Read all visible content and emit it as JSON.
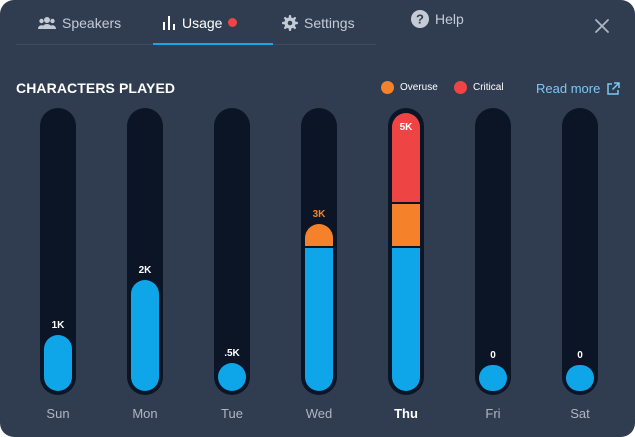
{
  "tabs": [
    {
      "label": "Speakers",
      "icon": "users-icon",
      "active": false
    },
    {
      "label": "Usage",
      "icon": "bar-chart-icon",
      "active": true,
      "alert": true
    },
    {
      "label": "Settings",
      "icon": "gear-icon",
      "active": false
    },
    {
      "label": "Help",
      "icon": "question-icon",
      "active": false
    }
  ],
  "section_title": "CHARACTERS PLAYED",
  "legend": [
    {
      "label": "Overuse",
      "color": "#f5822a"
    },
    {
      "label": "Critical",
      "color": "#ef4444"
    }
  ],
  "read_more": "Read more",
  "colors": {
    "normal": "#0ea5e9",
    "overuse": "#f5822a",
    "critical": "#ef4444",
    "track": "#0c1526"
  },
  "chart_data": {
    "type": "bar",
    "categories": [
      "Sun",
      "Mon",
      "Tue",
      "Wed",
      "Thu",
      "Fri",
      "Sat"
    ],
    "values": [
      1000,
      2000,
      500,
      3000,
      5000,
      0,
      0
    ],
    "data_labels": [
      "1K",
      "2K",
      ".5K",
      "3K",
      "5K",
      "0",
      "0"
    ],
    "selected": "Thu",
    "ylim": [
      0,
      5000
    ],
    "limits": {
      "overuse": 2600,
      "critical": 3400
    },
    "legend_position": "top-right"
  }
}
